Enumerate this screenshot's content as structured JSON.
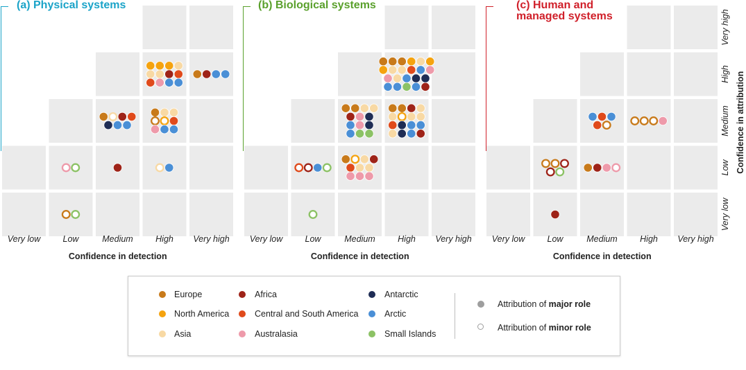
{
  "panels": [
    {
      "title": "(a) Physical systems",
      "color": "#1aa3c8"
    },
    {
      "title": "(b) Biological systems",
      "color": "#5aa02c"
    },
    {
      "title": "(c) Human and\nmanaged systems",
      "color": "#d0202a"
    }
  ],
  "chart_data": {
    "type": "scatter",
    "x_categories": [
      "Very low",
      "Low",
      "Medium",
      "High",
      "Very high"
    ],
    "y_categories": [
      "Very low",
      "Low",
      "Medium",
      "High",
      "Very high"
    ],
    "xlabel": "Confidence in detection",
    "ylabel": "Confidence in attribution",
    "regions": {
      "Europe": "#c87a1a",
      "North America": "#f5a30f",
      "Asia": "#f8d9a4",
      "Africa": "#9e2318",
      "Central and South America": "#e04a1b",
      "Australasia": "#ee9aaa",
      "Antarctic": "#1f2d55",
      "Arctic": "#4a8fd6",
      "Small Islands": "#8cc265"
    },
    "panels": [
      {
        "name": "(a) Physical systems",
        "cells": [
          {
            "x": "Low",
            "y": "Very low",
            "items": [
              [
                "Europe",
                "minor"
              ],
              [
                "Small Islands",
                "minor"
              ]
            ]
          },
          {
            "x": "Low",
            "y": "Low",
            "items": [
              [
                "Australasia",
                "minor"
              ],
              [
                "Small Islands",
                "minor"
              ]
            ]
          },
          {
            "x": "Medium",
            "y": "Low",
            "items": [
              [
                "Africa",
                "major"
              ]
            ]
          },
          {
            "x": "High",
            "y": "Low",
            "items": [
              [
                "Asia",
                "minor"
              ],
              [
                "Arctic",
                "major"
              ]
            ]
          },
          {
            "x": "Medium",
            "y": "Medium",
            "items": [
              [
                "Europe",
                "major"
              ],
              [
                "Asia",
                "minor"
              ],
              [
                "Africa",
                "major"
              ],
              [
                "Central and South America",
                "major"
              ],
              [
                "Antarctic",
                "major"
              ],
              [
                "Arctic",
                "major"
              ],
              [
                "Arctic",
                "major"
              ]
            ]
          },
          {
            "x": "High",
            "y": "Medium",
            "items": [
              [
                "Europe",
                "major"
              ],
              [
                "Asia",
                "major"
              ],
              [
                "Asia",
                "major"
              ],
              [
                "Europe",
                "minor"
              ],
              [
                "North America",
                "minor"
              ],
              [
                "Central and South America",
                "major"
              ],
              [
                "Australasia",
                "major"
              ],
              [
                "Arctic",
                "major"
              ],
              [
                "Arctic",
                "major"
              ]
            ]
          },
          {
            "x": "High",
            "y": "High",
            "items": [
              [
                "North America",
                "major"
              ],
              [
                "North America",
                "major"
              ],
              [
                "North America",
                "major"
              ],
              [
                "Asia",
                "major"
              ],
              [
                "Asia",
                "major"
              ],
              [
                "Asia",
                "major"
              ],
              [
                "Africa",
                "major"
              ],
              [
                "Central and South America",
                "major"
              ],
              [
                "Central and South America",
                "major"
              ],
              [
                "Australasia",
                "major"
              ],
              [
                "Arctic",
                "major"
              ],
              [
                "Arctic",
                "major"
              ]
            ]
          },
          {
            "x": "Very high",
            "y": "High",
            "items": [
              [
                "Europe",
                "major"
              ],
              [
                "Africa",
                "major"
              ],
              [
                "Arctic",
                "major"
              ],
              [
                "Arctic",
                "major"
              ]
            ]
          }
        ]
      },
      {
        "name": "(b) Biological systems",
        "cells": [
          {
            "x": "Low",
            "y": "Very low",
            "items": [
              [
                "Small Islands",
                "minor"
              ]
            ]
          },
          {
            "x": "Low",
            "y": "Low",
            "items": [
              [
                "Central and South America",
                "minor"
              ],
              [
                "Africa",
                "minor"
              ],
              [
                "Arctic",
                "major"
              ],
              [
                "Small Islands",
                "minor"
              ]
            ]
          },
          {
            "x": "Medium",
            "y": "Low",
            "items": [
              [
                "Europe",
                "major"
              ],
              [
                "North America",
                "minor"
              ],
              [
                "Asia",
                "major"
              ],
              [
                "Africa",
                "major"
              ],
              [
                "Central and South America",
                "major"
              ],
              [
                "Asia",
                "major"
              ],
              [
                "Asia",
                "major"
              ],
              [
                "Australasia",
                "major"
              ],
              [
                "Australasia",
                "major"
              ],
              [
                "Australasia",
                "major"
              ]
            ]
          },
          {
            "x": "Medium",
            "y": "Medium",
            "items": [
              [
                "Europe",
                "major"
              ],
              [
                "Europe",
                "major"
              ],
              [
                "Asia",
                "major"
              ],
              [
                "Asia",
                "major"
              ],
              [
                "Africa",
                "major"
              ],
              [
                "Australasia",
                "major"
              ],
              [
                "Antarctic",
                "major"
              ],
              [
                "Arctic",
                "major"
              ],
              [
                "Australasia",
                "major"
              ],
              [
                "Antarctic",
                "major"
              ],
              [
                "Arctic",
                "major"
              ],
              [
                "Small Islands",
                "major"
              ],
              [
                "Small Islands",
                "major"
              ]
            ]
          },
          {
            "x": "High",
            "y": "Medium",
            "items": [
              [
                "Europe",
                "major"
              ],
              [
                "Europe",
                "major"
              ],
              [
                "Africa",
                "major"
              ],
              [
                "Asia",
                "major"
              ],
              [
                "Asia",
                "major"
              ],
              [
                "North America",
                "minor"
              ],
              [
                "Asia",
                "major"
              ],
              [
                "Asia",
                "major"
              ],
              [
                "Central and South America",
                "major"
              ],
              [
                "Antarctic",
                "major"
              ],
              [
                "Arctic",
                "major"
              ],
              [
                "Arctic",
                "major"
              ],
              [
                "Asia",
                "major"
              ],
              [
                "Antarctic",
                "major"
              ],
              [
                "Arctic",
                "major"
              ],
              [
                "Africa",
                "major"
              ]
            ]
          },
          {
            "x": "High",
            "y": "High",
            "items": [
              [
                "Europe",
                "major"
              ],
              [
                "Europe",
                "major"
              ],
              [
                "Europe",
                "major"
              ],
              [
                "North America",
                "major"
              ],
              [
                "Asia",
                "major"
              ],
              [
                "North America",
                "major"
              ],
              [
                "North America",
                "major"
              ],
              [
                "Asia",
                "major"
              ],
              [
                "Asia",
                "major"
              ],
              [
                "Central and South America",
                "major"
              ],
              [
                "Arctic",
                "major"
              ],
              [
                "Australasia",
                "major"
              ],
              [
                "Australasia",
                "major"
              ],
              [
                "Asia",
                "major"
              ],
              [
                "Arctic",
                "major"
              ],
              [
                "Antarctic",
                "major"
              ],
              [
                "Antarctic",
                "major"
              ],
              [
                "Arctic",
                "major"
              ],
              [
                "Arctic",
                "major"
              ],
              [
                "Small Islands",
                "major"
              ],
              [
                "Arctic",
                "major"
              ],
              [
                "Africa",
                "major"
              ]
            ]
          }
        ]
      },
      {
        "name": "(c) Human and managed systems",
        "cells": [
          {
            "x": "Low",
            "y": "Very low",
            "items": [
              [
                "Africa",
                "major"
              ]
            ]
          },
          {
            "x": "Low",
            "y": "Low",
            "items": [
              [
                "Europe",
                "minor"
              ],
              [
                "Europe",
                "minor"
              ],
              [
                "Africa",
                "minor"
              ],
              [
                "Africa",
                "minor"
              ],
              [
                "Small Islands",
                "minor"
              ]
            ]
          },
          {
            "x": "Medium",
            "y": "Low",
            "items": [
              [
                "Europe",
                "major"
              ],
              [
                "Africa",
                "major"
              ],
              [
                "Australasia",
                "major"
              ],
              [
                "Australasia",
                "minor"
              ]
            ]
          },
          {
            "x": "Medium",
            "y": "Medium",
            "items": [
              [
                "Arctic",
                "major"
              ],
              [
                "Central and South America",
                "major"
              ],
              [
                "Arctic",
                "major"
              ],
              [
                "Central and South America",
                "major"
              ],
              [
                "Europe",
                "minor"
              ]
            ]
          },
          {
            "x": "High",
            "y": "Medium",
            "items": [
              [
                "Europe",
                "minor"
              ],
              [
                "Europe",
                "minor"
              ],
              [
                "Europe",
                "minor"
              ],
              [
                "Australasia",
                "major"
              ]
            ]
          }
        ]
      }
    ]
  },
  "legend": {
    "regions_col1": [
      {
        "label": "Europe",
        "color": "#c87a1a"
      },
      {
        "label": "North America",
        "color": "#f5a30f"
      },
      {
        "label": "Asia",
        "color": "#f8d9a4"
      }
    ],
    "regions_col2": [
      {
        "label": "Africa",
        "color": "#9e2318"
      },
      {
        "label": "Central and South America",
        "color": "#e04a1b"
      },
      {
        "label": "Australasia",
        "color": "#ee9aaa"
      }
    ],
    "regions_col3": [
      {
        "label": "Antarctic",
        "color": "#1f2d55"
      },
      {
        "label": "Arctic",
        "color": "#4a8fd6"
      },
      {
        "label": "Small Islands",
        "color": "#8cc265"
      }
    ],
    "major_prefix": "Attribution of ",
    "major_bold": "major role",
    "minor_prefix": "Attribution of ",
    "minor_bold": "minor role"
  }
}
